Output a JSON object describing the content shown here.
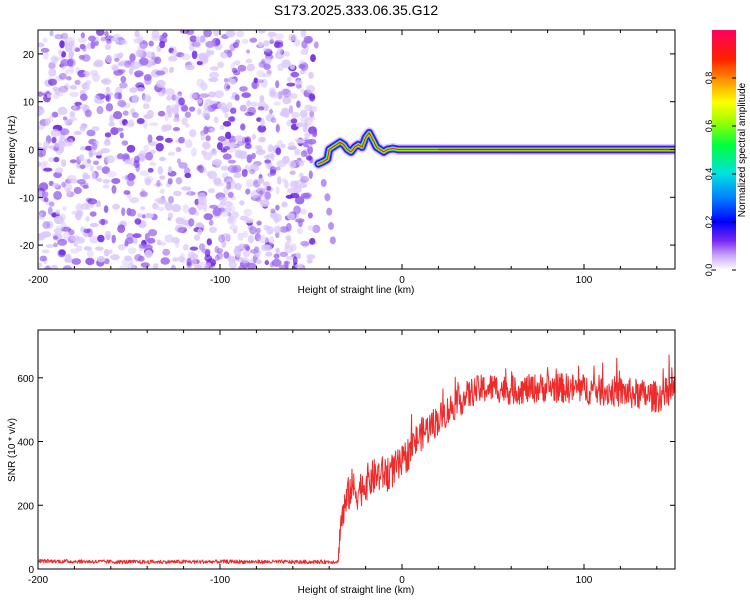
{
  "title": "S173.2025.333.06.35.G12",
  "colors": {
    "snr_line": "#ee2b2b",
    "scatter_base": "#9b66f0",
    "scatter_light": "#d9c6fb",
    "scatter_dark": "#6a1fe0"
  },
  "chart_data": [
    {
      "type": "heatmap",
      "name": "spectrogram",
      "title": "S173.2025.333.06.35.G12",
      "xlabel": "Height of straight line (km)",
      "ylabel": "Frequency (Hz)",
      "xlim": [
        -200,
        150
      ],
      "ylim": [
        -25,
        25
      ],
      "x_ticks": [
        "-200",
        "-100",
        "0",
        "100"
      ],
      "x_tick_values": [
        -200,
        -100,
        0,
        100
      ],
      "y_ticks": [
        "-20",
        "-10",
        "0",
        "10",
        "20"
      ],
      "y_tick_values": [
        -20,
        -10,
        0,
        10,
        20
      ],
      "noise_region_x": [
        -200,
        -47
      ],
      "signal_trace": {
        "x": [
          -46,
          -43,
          -41,
          -40,
          -38,
          -36,
          -34,
          -32,
          -30,
          -28,
          -26,
          -24,
          -22,
          -20,
          -18,
          -16,
          -14,
          -12,
          -10,
          -8,
          -5,
          -2,
          0,
          3,
          6,
          10,
          20,
          50,
          100,
          150
        ],
        "y": [
          -3,
          -2.5,
          -2,
          0,
          0.5,
          1,
          1.5,
          1,
          0,
          -0.5,
          0.5,
          1,
          0.5,
          2.5,
          3.5,
          2,
          0.5,
          0,
          -0.5,
          0,
          0.2,
          0,
          0,
          0,
          0,
          0,
          0,
          0,
          0,
          0
        ]
      },
      "stray_points": {
        "x": [
          -43,
          -41,
          -40,
          -39,
          -38
        ],
        "y": [
          -7,
          -10,
          -13,
          -16,
          -19
        ]
      },
      "colorbar": {
        "label": "Normalized spectral amplitude",
        "range": [
          0,
          1
        ],
        "ticks": [
          "0.0",
          "0.2",
          "0.4",
          "0.6",
          "0.8"
        ],
        "tick_values": [
          0,
          0.2,
          0.4,
          0.6,
          0.8
        ]
      }
    },
    {
      "type": "line",
      "name": "snr",
      "xlabel": "Height of straight line (km)",
      "ylabel": "SNR (10 * v/v)",
      "xlim": [
        -200,
        150
      ],
      "ylim": [
        0,
        750
      ],
      "x_ticks": [
        "-200",
        "-100",
        "0",
        "100"
      ],
      "x_tick_values": [
        -200,
        -100,
        0,
        100
      ],
      "y_ticks": [
        "0",
        "200",
        "400",
        "600"
      ],
      "y_tick_values": [
        0,
        200,
        400,
        600
      ],
      "envelope": {
        "x": [
          -200,
          -150,
          -100,
          -50,
          -35,
          -34,
          -30,
          -28,
          -25,
          -20,
          -15,
          -10,
          -5,
          0,
          5,
          10,
          20,
          30,
          40,
          50,
          60,
          80,
          100,
          120,
          140,
          150
        ],
        "y": [
          25,
          22,
          23,
          22,
          23,
          140,
          220,
          260,
          240,
          270,
          290,
          300,
          310,
          330,
          380,
          420,
          470,
          520,
          560,
          570,
          560,
          570,
          565,
          555,
          540,
          560
        ]
      },
      "noise_amplitude": {
        "x": [
          -200,
          -35,
          -34,
          0,
          20,
          50,
          150
        ],
        "y": [
          6,
          6,
          60,
          55,
          50,
          45,
          50
        ]
      }
    }
  ]
}
